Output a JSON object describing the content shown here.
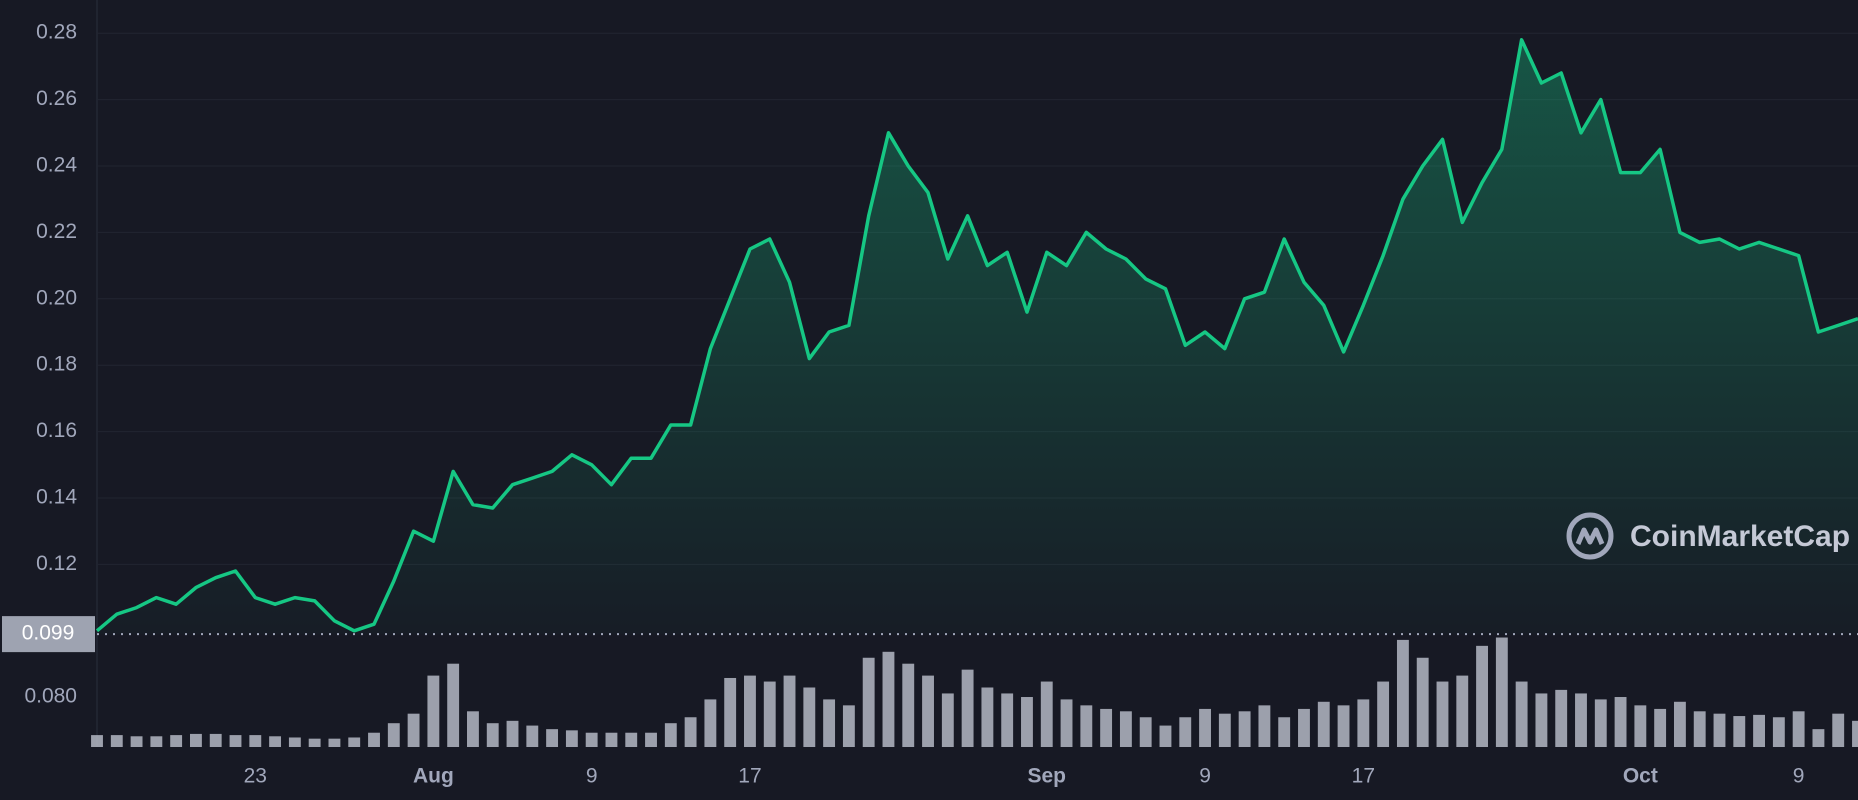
{
  "chart_data": {
    "type": "line",
    "categories": [
      null,
      null,
      null,
      null,
      null,
      null,
      null,
      null,
      "23",
      null,
      null,
      null,
      null,
      null,
      null,
      null,
      null,
      "Aug",
      null,
      null,
      null,
      null,
      null,
      null,
      null,
      "9",
      null,
      null,
      null,
      null,
      null,
      null,
      null,
      "17",
      null,
      null,
      null,
      null,
      null,
      null,
      null,
      null,
      null,
      null,
      null,
      null,
      null,
      null,
      "Sep",
      null,
      null,
      null,
      null,
      null,
      null,
      null,
      "9",
      null,
      null,
      null,
      null,
      null,
      null,
      null,
      "17",
      null,
      null,
      null,
      null,
      null,
      null,
      null,
      null,
      null,
      null,
      null,
      null,
      null,
      "Oct",
      null,
      null,
      null,
      null,
      null,
      null,
      null,
      "9",
      null,
      null,
      null
    ],
    "series": [
      {
        "color": "#16c784",
        "values": [
          0.1,
          0.105,
          0.107,
          0.11,
          0.108,
          0.113,
          0.116,
          0.118,
          0.11,
          0.108,
          0.11,
          0.109,
          0.103,
          0.1,
          0.102,
          0.115,
          0.13,
          0.127,
          0.148,
          0.138,
          0.137,
          0.144,
          0.146,
          0.148,
          0.153,
          0.15,
          0.144,
          0.152,
          0.152,
          0.162,
          0.162,
          0.185,
          0.2,
          0.215,
          0.218,
          0.205,
          0.182,
          0.19,
          0.192,
          0.225,
          0.25,
          0.24,
          0.232,
          0.212,
          0.225,
          0.21,
          0.214,
          0.196,
          0.214,
          0.21,
          0.22,
          0.215,
          0.212,
          0.206,
          0.203,
          0.186,
          0.19,
          0.185,
          0.2,
          0.202,
          0.218,
          0.205,
          0.198,
          0.184,
          0.198,
          0.213,
          0.23,
          0.24,
          0.248,
          0.223,
          0.235,
          0.245,
          0.278,
          0.265,
          0.268,
          0.25,
          0.26,
          0.238,
          0.238,
          0.245,
          0.22,
          0.217,
          0.218,
          0.215,
          0.217,
          0.215,
          0.213,
          0.19,
          0.192,
          0.194
        ]
      },
      {
        "color": "#c9ceda",
        "axis": "y2",
        "values": [
          10,
          10,
          9,
          9,
          10,
          11,
          11,
          10,
          10,
          9,
          8,
          7,
          7,
          8,
          12,
          20,
          28,
          60,
          70,
          30,
          20,
          22,
          18,
          15,
          14,
          12,
          12,
          12,
          12,
          20,
          25,
          40,
          58,
          60,
          55,
          60,
          50,
          40,
          35,
          75,
          80,
          70,
          60,
          45,
          65,
          50,
          45,
          42,
          55,
          40,
          35,
          32,
          30,
          25,
          18,
          25,
          32,
          28,
          30,
          35,
          25,
          32,
          38,
          35,
          40,
          55,
          90,
          75,
          55,
          60,
          85,
          92,
          55,
          45,
          48,
          45,
          40,
          42,
          35,
          32,
          38,
          30,
          28,
          26,
          27,
          25,
          30,
          15,
          28,
          22
        ]
      }
    ],
    "ylim": [
      0.065,
      0.29
    ],
    "yticks": [
      {
        "value": 0.08,
        "label": "0.080"
      },
      0.12,
      0.14,
      0.16,
      0.18,
      {
        "value": 0.2,
        "label": "0.20"
      },
      0.22,
      0.24,
      0.26,
      0.28
    ],
    "y2lim": [
      0,
      100
    ],
    "grid": true,
    "current_price": 0.099,
    "watermark": "CoinMarketCap"
  }
}
